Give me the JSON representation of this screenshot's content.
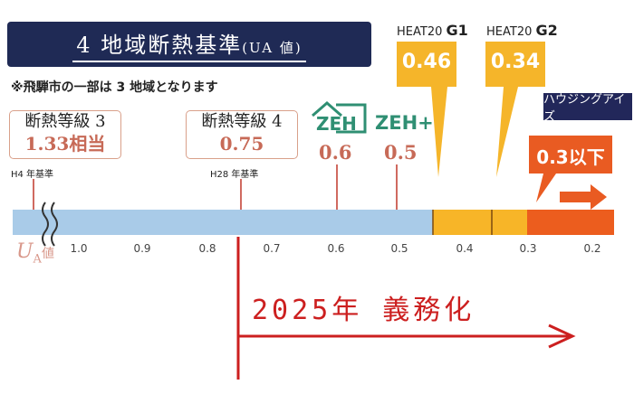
{
  "title": {
    "main": "4 地域断熱基準",
    "sub": "(UA 値)"
  },
  "note": "※飛騨市の一部は 3 地域となります",
  "grades": [
    {
      "label": "断熱等級 3",
      "value": "1.33相当",
      "standard": "H4 年基準"
    },
    {
      "label": "断熱等級 4",
      "value": "0.75",
      "standard": "H28 年基準"
    }
  ],
  "zeh": [
    {
      "logo": "ZEH",
      "value": "0.6"
    },
    {
      "logo": "ZEH+",
      "value": "0.5"
    }
  ],
  "heat20": [
    {
      "prefix": "HEAT20",
      "grade": "G1",
      "value": "0.46"
    },
    {
      "prefix": "HEAT20",
      "grade": "G2",
      "value": "0.34"
    }
  ],
  "target": {
    "value": "0.3以下"
  },
  "brand": "ハウジングアイズ",
  "axis": {
    "label_main": "U",
    "label_sub": "A",
    "label_suffix": "値",
    "ticks": [
      "1.0",
      "0.9",
      "0.8",
      "0.7",
      "0.6",
      "0.5",
      "0.4",
      "0.3",
      "0.2"
    ]
  },
  "mandate": "2025年 義務化",
  "colors": {
    "title_bg": "#1f2a55",
    "bar_blue": "#a9cbe8",
    "bar_yellow": "#f7b528",
    "bar_orange": "#ec5d1e",
    "callout_yellow": "#f5b52a",
    "callout_orange": "#e95b22",
    "value_red": "#c76a57",
    "zeh_green": "#2f8f73",
    "mandate_red": "#cc1f1f"
  }
}
